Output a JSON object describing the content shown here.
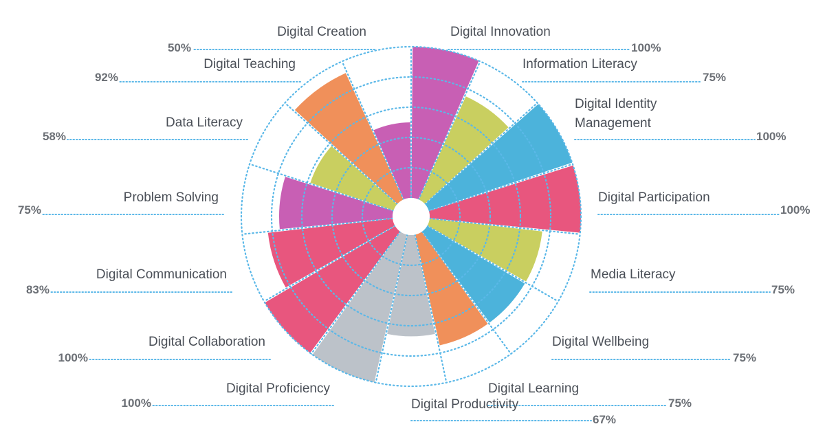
{
  "chart_data": {
    "type": "polar-area",
    "max": 100,
    "grid": true,
    "segments": [
      {
        "label": "Digital Innovation",
        "value": 100,
        "percent": "100%",
        "color": "#c85fb4"
      },
      {
        "label": "Information Literacy",
        "value": 75,
        "percent": "75%",
        "color": "#c9cf60"
      },
      {
        "label": "Digital Identity Management",
        "value": 100,
        "percent": "100%",
        "color": "#4cb3db"
      },
      {
        "label": "Digital Participation",
        "value": 100,
        "percent": "100%",
        "color": "#e8567e"
      },
      {
        "label": "Media Literacy",
        "value": 75,
        "percent": "75%",
        "color": "#c9cf60"
      },
      {
        "label": "Digital Wellbeing",
        "value": 75,
        "percent": "75%",
        "color": "#4cb3db"
      },
      {
        "label": "Digital Learning",
        "value": 75,
        "percent": "75%",
        "color": "#f0905a"
      },
      {
        "label": "Digital Productivity",
        "value": 67,
        "percent": "67%",
        "color": "#bcc2c9"
      },
      {
        "label": "Digital Proficiency",
        "value": 100,
        "percent": "100%",
        "color": "#bcc2c9"
      },
      {
        "label": "Digital Collaboration",
        "value": 100,
        "percent": "100%",
        "color": "#e8567e"
      },
      {
        "label": "Digital Communication",
        "value": 83,
        "percent": "83%",
        "color": "#e8567e"
      },
      {
        "label": "Problem Solving",
        "value": 75,
        "percent": "75%",
        "color": "#c85fb4"
      },
      {
        "label": "Data Literacy",
        "value": 58,
        "percent": "58%",
        "color": "#c9cf60"
      },
      {
        "label": "Digital Teaching",
        "value": 92,
        "percent": "92%",
        "color": "#f0905a"
      },
      {
        "label": "Digital Creation",
        "value": 50,
        "percent": "50%",
        "color": "#c85fb4"
      }
    ],
    "grid_color": "#5bb8e8",
    "leader_color": "#5bb8e8"
  }
}
